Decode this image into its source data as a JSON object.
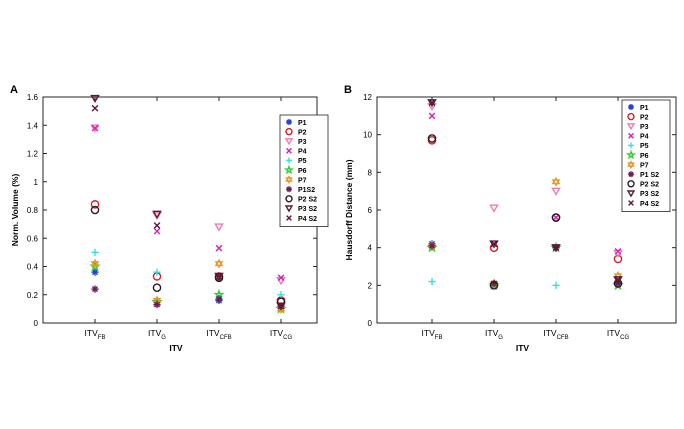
{
  "colors": {
    "P1": "#1f3fd6",
    "P2": "#d62020",
    "P3": "#f07ab3",
    "P4": "#d61fb8",
    "P5": "#33e0e0",
    "P6": "#33cc33",
    "P7": "#e89a2e",
    "P1S2": "#6a1e5a",
    "P2S2": "#2a1a24",
    "P3S2": "#5a1a3a",
    "P4S2": "#5a1a3a"
  },
  "chart_data": [
    {
      "panel": "A",
      "type": "scatter",
      "xlabel": "ITV",
      "ylabel": "Norm. Volume (%)",
      "ylim": [
        0,
        1.6
      ],
      "yticks": [
        "0",
        "0.2",
        "0.4",
        "0.6",
        "0.8",
        "1",
        "1.2",
        "1.4",
        "1.6"
      ],
      "categories": [
        {
          "base": "ITV",
          "sub": "FB"
        },
        {
          "base": "ITV",
          "sub": "G"
        },
        {
          "base": "ITV",
          "sub": "CFB"
        },
        {
          "base": "ITV",
          "sub": "CG"
        }
      ],
      "legend_position": "top-right",
      "series": [
        {
          "name": "P1",
          "marker": "asterisk",
          "values": [
            0.36,
            0.15,
            0.16,
            0.11
          ]
        },
        {
          "name": "P2",
          "marker": "circle",
          "values": [
            0.84,
            0.33,
            0.33,
            0.16
          ]
        },
        {
          "name": "P3",
          "marker": "triangle-down",
          "values": [
            1.38,
            0.76,
            0.68,
            0.3
          ]
        },
        {
          "name": "P4",
          "marker": "x",
          "values": [
            1.38,
            0.65,
            0.53,
            0.32
          ]
        },
        {
          "name": "P5",
          "marker": "plus",
          "values": [
            0.5,
            0.36,
            0.19,
            0.2
          ]
        },
        {
          "name": "P6",
          "marker": "star",
          "values": [
            0.4,
            0.15,
            0.2,
            0.1
          ]
        },
        {
          "name": "P7",
          "marker": "hexagram",
          "values": [
            0.42,
            0.16,
            0.42,
            0.1
          ]
        },
        {
          "name": "P1S2",
          "marker": "asterisk",
          "values": [
            0.24,
            0.13,
            0.17,
            0.12
          ]
        },
        {
          "name": "P2 S2",
          "marker": "circle",
          "values": [
            0.8,
            0.25,
            0.32,
            0.15
          ]
        },
        {
          "name": "P3 S2",
          "marker": "triangle-down",
          "values": [
            1.59,
            0.77,
            0.33,
            0.12
          ]
        },
        {
          "name": "P4 S2",
          "marker": "x",
          "values": [
            1.52,
            0.69,
            0.33,
            0.12
          ]
        }
      ]
    },
    {
      "panel": "B",
      "type": "scatter",
      "xlabel": "ITV",
      "ylabel": "Hausdorff Distance (mm)",
      "ylim": [
        0,
        12
      ],
      "yticks": [
        "0",
        "2",
        "4",
        "6",
        "8",
        "10",
        "12"
      ],
      "categories": [
        {
          "base": "ITV",
          "sub": "FB"
        },
        {
          "base": "ITV",
          "sub": "G"
        },
        {
          "base": "ITV",
          "sub": "CFB"
        },
        {
          "base": "ITV",
          "sub": "CG"
        }
      ],
      "legend_position": "top-right",
      "series": [
        {
          "name": "P1",
          "marker": "asterisk",
          "values": [
            4.2,
            2.1,
            4.0,
            2.2
          ]
        },
        {
          "name": "P2",
          "marker": "circle",
          "values": [
            9.7,
            4.0,
            5.6,
            3.4
          ]
        },
        {
          "name": "P3",
          "marker": "triangle-down",
          "values": [
            11.5,
            6.1,
            7.0,
            3.7
          ]
        },
        {
          "name": "P4",
          "marker": "x",
          "values": [
            11.0,
            4.2,
            5.6,
            3.8
          ]
        },
        {
          "name": "P5",
          "marker": "plus",
          "values": [
            2.2,
            2.1,
            2.0,
            2.2
          ]
        },
        {
          "name": "P6",
          "marker": "star",
          "values": [
            4.0,
            2.0,
            4.0,
            2.0
          ]
        },
        {
          "name": "P7",
          "marker": "hexagram",
          "values": [
            4.1,
            2.1,
            7.5,
            2.5
          ]
        },
        {
          "name": "P1 S2",
          "marker": "asterisk",
          "values": [
            4.1,
            2.1,
            4.0,
            2.1
          ]
        },
        {
          "name": "P2 S2",
          "marker": "circle",
          "values": [
            9.8,
            2.0,
            5.6,
            2.1
          ]
        },
        {
          "name": "P3 S2",
          "marker": "triangle-down",
          "values": [
            11.7,
            4.2,
            4.0,
            2.3
          ]
        },
        {
          "name": "P4 S2",
          "marker": "x",
          "values": [
            11.7,
            4.2,
            4.0,
            2.3
          ]
        }
      ]
    }
  ]
}
